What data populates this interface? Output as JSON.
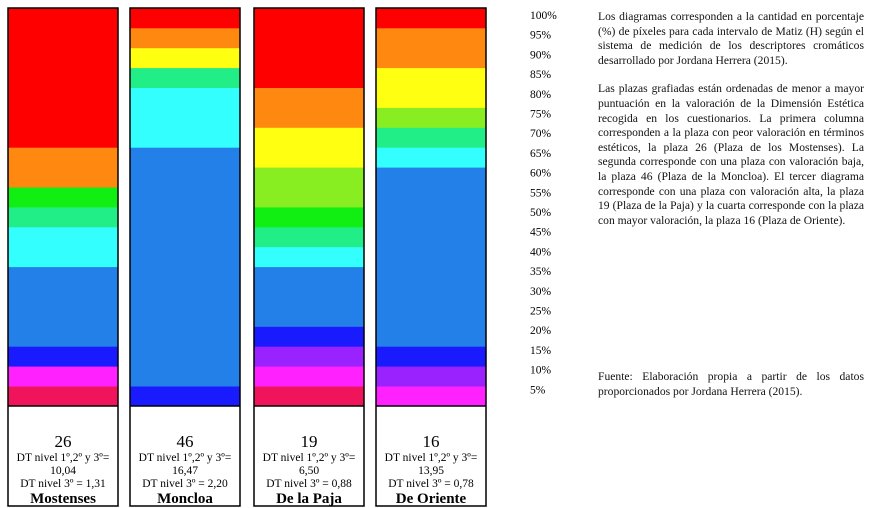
{
  "chart_data": {
    "type": "stacked-bar",
    "y_ticks": [
      "100%",
      "95%",
      "90%",
      "85%",
      "80%",
      "75%",
      "70%",
      "65%",
      "60%",
      "55%",
      "50%",
      "45%",
      "40%",
      "35%",
      "30%",
      "25%",
      "20%",
      "15%",
      "10%",
      "5%"
    ],
    "bars": [
      {
        "id": "mostenses",
        "number": "26",
        "dt_line1": "DT nivel 1º,2º y 3º=",
        "dt_line2": "10,04",
        "dt_line3": "DT nivel 3º = 1,31",
        "name": "Mostenses",
        "segments": [
          {
            "color": "#f0145a",
            "value": 5
          },
          {
            "color": "#ff22ff",
            "value": 5
          },
          {
            "color": "#1a1aff",
            "value": 5
          },
          {
            "color": "#2280e8",
            "value": 20
          },
          {
            "color": "#33ffff",
            "value": 10
          },
          {
            "color": "#22ee88",
            "value": 5
          },
          {
            "color": "#11ee11",
            "value": 5
          },
          {
            "color": "#ff8811",
            "value": 10
          },
          {
            "color": "#ff0000",
            "value": 35
          }
        ]
      },
      {
        "id": "moncloa",
        "number": "46",
        "dt_line1": "DT nivel 1º,2º y 3º=",
        "dt_line2": "16,47",
        "dt_line3": "DT nivel 3º = 2,20",
        "name": "Moncloa",
        "segments": [
          {
            "color": "#1a1aff",
            "value": 5
          },
          {
            "color": "#2280e8",
            "value": 60
          },
          {
            "color": "#33ffff",
            "value": 15
          },
          {
            "color": "#22ee88",
            "value": 5
          },
          {
            "color": "#ffff11",
            "value": 5
          },
          {
            "color": "#ff8811",
            "value": 5
          },
          {
            "color": "#ff0000",
            "value": 5
          }
        ]
      },
      {
        "id": "la-paja",
        "number": "19",
        "dt_line1": "DT nivel 1º,2º y 3º=",
        "dt_line2": "6,50",
        "dt_line3": "DT nivel 3º = 0,88",
        "name": "De la Paja",
        "segments": [
          {
            "color": "#f0145a",
            "value": 5
          },
          {
            "color": "#ff22ff",
            "value": 5
          },
          {
            "color": "#9922ff",
            "value": 5
          },
          {
            "color": "#1a1aff",
            "value": 5
          },
          {
            "color": "#2280e8",
            "value": 15
          },
          {
            "color": "#33ffff",
            "value": 5
          },
          {
            "color": "#22ee88",
            "value": 5
          },
          {
            "color": "#11ee11",
            "value": 5
          },
          {
            "color": "#88ee22",
            "value": 10
          },
          {
            "color": "#ffff11",
            "value": 10
          },
          {
            "color": "#ff8811",
            "value": 10
          },
          {
            "color": "#ff0000",
            "value": 20
          }
        ]
      },
      {
        "id": "de-oriente",
        "number": "16",
        "dt_line1": "DT nivel 1º,2º y 3º=",
        "dt_line2": "13,95",
        "dt_line3": "DT nivel 3º = 0,78",
        "name": "De Oriente",
        "segments": [
          {
            "color": "#ff22ff",
            "value": 5
          },
          {
            "color": "#9922ff",
            "value": 5
          },
          {
            "color": "#1a1aff",
            "value": 5
          },
          {
            "color": "#2280e8",
            "value": 45
          },
          {
            "color": "#33ffff",
            "value": 5
          },
          {
            "color": "#22ee88",
            "value": 5
          },
          {
            "color": "#88ee22",
            "value": 5
          },
          {
            "color": "#ffff11",
            "value": 10
          },
          {
            "color": "#ff8811",
            "value": 10
          },
          {
            "color": "#ff0000",
            "value": 5
          }
        ]
      }
    ]
  },
  "notes": {
    "paragraph1": "Los diagramas corresponden a la cantidad en porcentaje (%) de píxeles para cada intervalo de Matiz (H) según el sistema de medición de los descriptores cromáticos desarrollado por Jordana Herrera (2015).",
    "paragraph2": "Las plazas grafiadas están ordenadas de menor a mayor puntuación en la valoración de la Dimensión Estética recogida en los cuestionarios. La primera columna corresponden a la plaza con peor valoración en términos estéticos, la plaza 26 (Plaza de los Mostenses). La segunda corresponde con una plaza con valoración baja, la plaza 46 (Plaza de la Moncloa). El tercer diagrama corresponde con una plaza con valoración alta, la plaza 19 (Plaza de la Paja) y la cuarta corresponde con la plaza con mayor valoración, la plaza 16 (Plaza de Oriente).",
    "paragraph3": "Fuente: Elaboración propia a partir de los datos proporcionados por Jordana Herrera (2015)."
  }
}
